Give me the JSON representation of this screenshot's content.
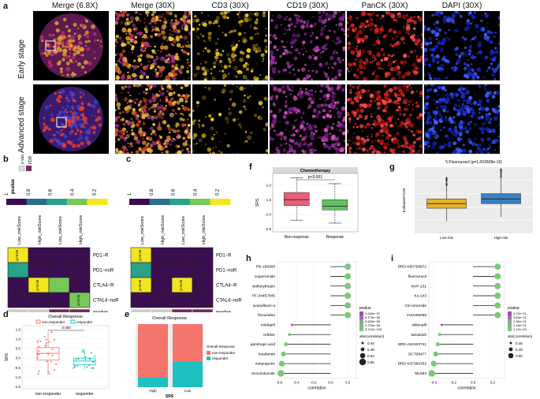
{
  "panel_a": {
    "label": "a",
    "columns": [
      "Merge (6.8X)",
      "Merge (30X)",
      "CD3 (30X)",
      "CD19 (30X)",
      "PanCK (30X)",
      "DAPI (30X)"
    ],
    "rows": [
      "Early stage",
      "Advanced stage"
    ]
  },
  "panel_b": {
    "label": "b",
    "legend_title": "pvalue",
    "legend_ticks": [
      "1",
      "0.8",
      "0.6",
      "0.4",
      "0.2"
    ],
    "key_items": [
      "p value",
      "FDR"
    ],
    "col_labels": [
      "Low_riskScore",
      "High_riskScore",
      "Low_riskScore",
      "High_riskScore"
    ],
    "row_labels": [
      "PD1−R",
      "PD1−noR",
      "CTLA4−R",
      "CTAL4−noR"
    ],
    "cell_texts": [
      "p<0.05",
      "p<0.05",
      "p<0.05"
    ],
    "bottom_label": "pvalue"
  },
  "panel_c": {
    "label": "c",
    "legend_ticks": [
      "1",
      "0.8",
      "0.6",
      "0.4",
      "0.2"
    ],
    "col_labels": [
      "Low_riskScore",
      "High_riskScore",
      "Low_riskScore",
      "High_riskScore"
    ],
    "row_labels": [
      "PD1−R",
      "PD1−noR",
      "CTLA4−R",
      "CTAL4−noR"
    ],
    "cell_texts": [
      "p<0.05",
      "p<0.05",
      "p<0.05"
    ],
    "bottom_label": "pvalue"
  },
  "panel_d": {
    "label": "d",
    "chart_data": {
      "type": "box",
      "title": "Overall Response",
      "legend": [
        "non-responder",
        "responder"
      ],
      "categories": [
        "non-responder",
        "responder"
      ],
      "ylabel": "SRS",
      "yticks": [
        "1.5",
        "1.0",
        "0.5",
        "0.0",
        "-0.5",
        "-1.0",
        "-1.5"
      ],
      "ylim": [
        -1.6,
        1.7
      ],
      "annotation": "0.050",
      "boxes": [
        {
          "name": "non-responder",
          "q1": -0.1,
          "median": 0.25,
          "q3": 0.55,
          "min": -0.9,
          "max": 1.4
        },
        {
          "name": "responder",
          "q1": -0.35,
          "median": -0.15,
          "q3": 0.0,
          "min": -0.6,
          "max": 0.45
        }
      ]
    }
  },
  "panel_e": {
    "label": "e",
    "chart_data": {
      "type": "bar",
      "stacked": true,
      "title": "Overall Response",
      "categories": [
        "High",
        "Low"
      ],
      "xlabel": "SRS",
      "legend_title": "Overall Response",
      "series": [
        {
          "name": "non-responder",
          "values": [
            0.85,
            0.6
          ],
          "color": "#f4756b"
        },
        {
          "name": "responder",
          "values": [
            0.15,
            0.4
          ],
          "color": "#1ec0c0"
        }
      ]
    }
  },
  "panel_f": {
    "label": "f",
    "chart_data": {
      "type": "box",
      "title": "Chemotherapy",
      "categories": [
        "Non-response",
        "Response"
      ],
      "ylabel": "SRS",
      "yticks": [
        "-1.0",
        "-1.5",
        "-2.0",
        "-2.5"
      ],
      "ylim": [
        -2.6,
        -0.6
      ],
      "annotation": "p<0.001",
      "boxes": [
        {
          "name": "Non-response",
          "q1": -1.7,
          "median": -1.5,
          "q3": -1.25,
          "min": -2.2,
          "max": -0.75,
          "color": "#e8607a"
        },
        {
          "name": "Response",
          "q1": -1.85,
          "median": -1.72,
          "q3": -1.5,
          "min": -2.3,
          "max": -0.95,
          "color": "#5ec45e"
        }
      ]
    }
  },
  "panel_g": {
    "label": "g",
    "chart_data": {
      "type": "box",
      "title": "5-Fluorouracil (p=1.003608e-16)",
      "categories": [
        "Low-risk",
        "High-risk"
      ],
      "ylabel": "Estimated IC50",
      "boxes": [
        {
          "name": "Low-risk",
          "q1": 0.38,
          "median": 0.45,
          "q3": 0.52,
          "min": 0.18,
          "max": 0.72,
          "color": "#e8b321"
        },
        {
          "name": "High-risk",
          "q1": 0.45,
          "median": 0.52,
          "q3": 0.6,
          "min": 0.25,
          "max": 0.85,
          "color": "#3a7fc1"
        }
      ]
    }
  },
  "panel_h": {
    "label": "h",
    "chart_data": {
      "type": "lollipop",
      "xlabel": "correlation",
      "xticks": [
        "-0.6",
        "-0.4",
        "-0.2",
        "0.0",
        "0.2"
      ],
      "xlim": [
        -0.62,
        0.3
      ],
      "categories": [
        "PD-198306",
        "oxiperomide",
        "isofloxythepin",
        "PF-04457845",
        "avasaflavin-a",
        "floxuridine",
        "imidapril",
        "cefdinir",
        "gambogic-acid",
        "lonafarnib",
        "metyrapone",
        "temozolomide"
      ],
      "values": [
        0.2,
        0.2,
        0.2,
        0.2,
        0.2,
        0.2,
        -0.45,
        -0.48,
        -0.52,
        -0.55,
        -0.57,
        -0.58
      ],
      "legend_pvalue_title": "pvalue",
      "legend_pvalue_ticks": [
        "1.060e−37",
        "8.175e−58",
        "5.450e−58",
        "2.725e−58",
        "3.210e−103"
      ],
      "legend_size_title": "abs(correlation)",
      "legend_size_ticks": [
        "0.44",
        "0.48",
        "0.52",
        "0.56"
      ]
    }
  },
  "panel_i": {
    "label": "i",
    "chart_data": {
      "type": "lollipop",
      "xlabel": "correlation",
      "xticks": [
        "-0.4",
        "-0.2",
        "0.0",
        "0.2"
      ],
      "xlim": [
        -0.45,
        0.32
      ],
      "categories": [
        "BRD-K50799972",
        "fluorouracil",
        "NVP-231",
        "Ko-143",
        "C6-ceramide",
        "VU0155056",
        "sildenafil",
        "tamatinib",
        "BRD-A02303741",
        "OCT08477",
        "BRD-K37390332",
        "ML083"
      ],
      "values": [
        0.25,
        0.25,
        0.25,
        0.25,
        0.25,
        0.25,
        -0.32,
        -0.34,
        -0.36,
        -0.38,
        -0.4,
        -0.42
      ],
      "legend_pvalue_title": "pvalue",
      "legend_pvalue_ticks": [
        "4.72e−01",
        "3.54e−01",
        "2.36e−01",
        "1.18e−01",
        "1.12e−64"
      ],
      "legend_size_title": "abs(correlation)",
      "legend_size_ticks": [
        "0.46",
        "0.48",
        "0.50"
      ]
    }
  }
}
